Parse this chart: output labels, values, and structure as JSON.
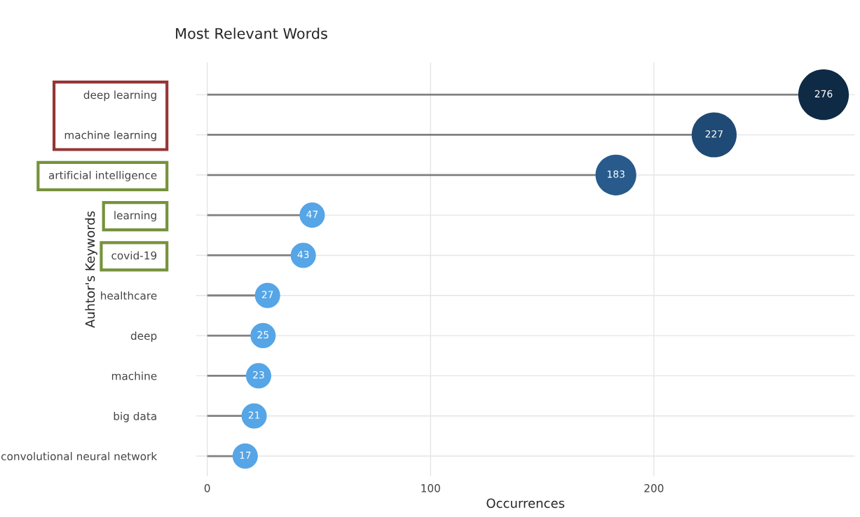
{
  "chart_data": {
    "type": "lollipop",
    "orientation": "horizontal",
    "title": "Most Relevant Words",
    "xlabel": "Occurrences",
    "ylabel": "Auhtor's Keywords",
    "categories": [
      "deep learning",
      "machine learning",
      "artificial intelligence",
      "learning",
      "covid-19",
      "healthcare",
      "deep",
      "machine",
      "big data",
      "convolutional neural network"
    ],
    "values": [
      276,
      227,
      183,
      47,
      43,
      27,
      25,
      23,
      21,
      17
    ],
    "sizes": [
      1,
      0.79,
      0.65,
      0.25,
      0.25,
      0.25,
      0.25,
      0.25,
      0.25,
      0.25
    ],
    "colors": [
      "#0f2a45",
      "#1f4a75",
      "#285a8c",
      "#56a5e6",
      "#56a5e6",
      "#56a5e6",
      "#56a5e6",
      "#56a5e6",
      "#56a5e6",
      "#56a5e6"
    ],
    "xlim": [
      -5,
      290
    ],
    "xticks": [
      0,
      100,
      200
    ],
    "grid": true,
    "data_labels": true
  }
}
